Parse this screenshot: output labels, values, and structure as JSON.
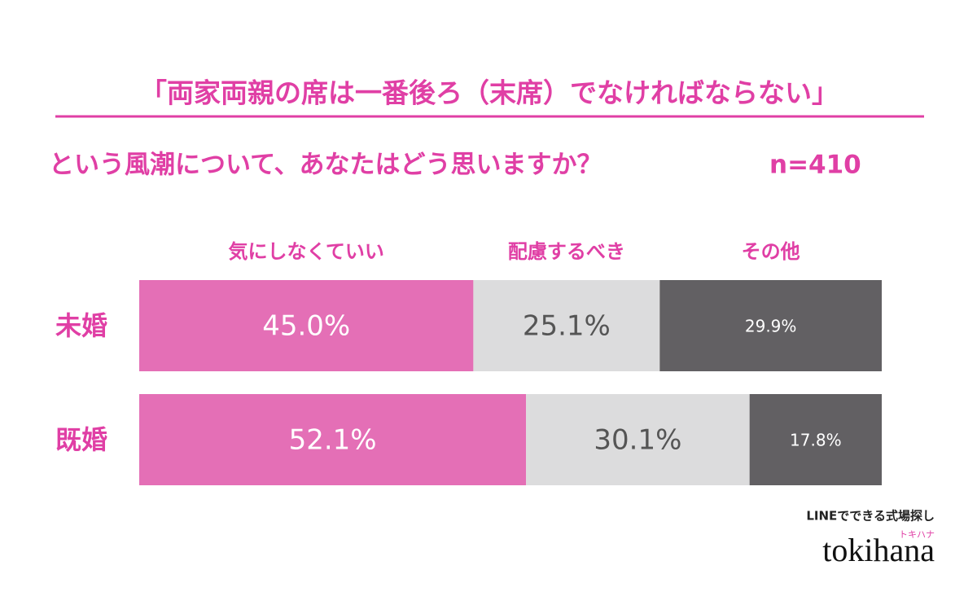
{
  "chart_data": {
    "type": "stacked-bar-horizontal",
    "title": "「両家両親の席は一番後ろ（末席）でなければならない」",
    "subtitle": "という風潮について、あなたはどう思いますか？",
    "sample_size": "n=410",
    "categories": [
      "未婚",
      "既婚"
    ],
    "series": [
      {
        "name": "気にしなくていい",
        "color": "#e46fb6",
        "values": [
          45.0,
          52.1
        ],
        "value_labels": [
          "45.0%",
          "52.1%"
        ]
      },
      {
        "name": "配慮するべき",
        "color": "#dcdcdd",
        "values": [
          25.1,
          30.1
        ],
        "value_labels": [
          "25.1%",
          "30.1%"
        ]
      },
      {
        "name": "その他",
        "color": "#626063",
        "values": [
          29.9,
          17.8
        ],
        "value_labels": [
          "29.9%",
          "17.8%"
        ]
      }
    ],
    "xlim": [
      0,
      100
    ],
    "logo": {
      "tagline": "LINEでできる式場探し",
      "name": "tokihana",
      "kana": "トキハナ"
    }
  }
}
